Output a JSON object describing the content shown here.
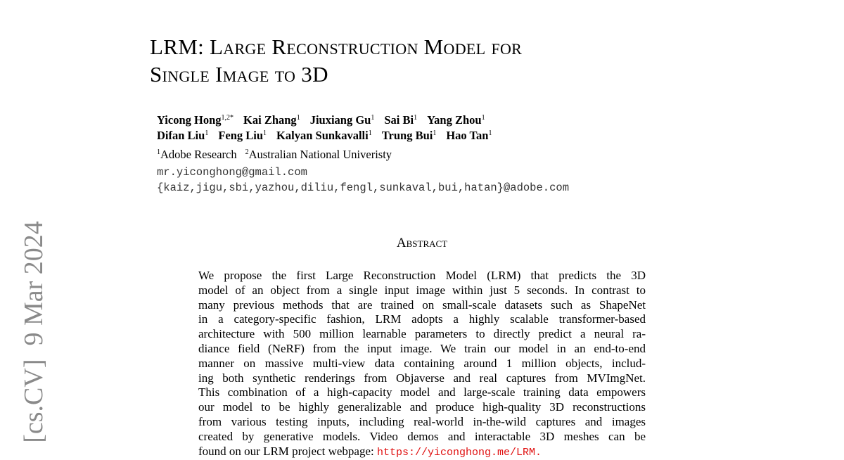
{
  "arxiv_stamp": "[cs.CV]  9 Mar 2024",
  "title": {
    "lines": [
      "LRM: Large Reconstruction Model for",
      "Single Image to 3D"
    ]
  },
  "authors": {
    "rows": [
      [
        {
          "name": "Yicong Hong",
          "sup": "1,2*"
        },
        {
          "name": "Kai Zhang",
          "sup": "1"
        },
        {
          "name": "Jiuxiang Gu",
          "sup": "1"
        },
        {
          "name": "Sai Bi",
          "sup": "1"
        },
        {
          "name": "Yang Zhou",
          "sup": "1"
        }
      ],
      [
        {
          "name": "Difan Liu",
          "sup": "1"
        },
        {
          "name": "Feng Liu",
          "sup": "1"
        },
        {
          "name": "Kalyan Sunkavalli",
          "sup": "1"
        },
        {
          "name": "Trung Bui",
          "sup": "1"
        },
        {
          "name": "Hao Tan",
          "sup": "1"
        }
      ]
    ]
  },
  "affiliations": [
    {
      "sup": "1",
      "name": "Adobe Research"
    },
    {
      "sup": "2",
      "name": "Australian National Univeristy"
    }
  ],
  "emails": [
    "mr.yiconghong@gmail.com",
    "{kaiz,jigu,sbi,yazhou,diliu,fengl,sunkaval,bui,hatan}@adobe.com"
  ],
  "abstract": {
    "heading": "Abstract",
    "lines": [
      "We propose the first Large Reconstruction Model (LRM) that predicts the 3D",
      "model of an object from a single input image within just 5 seconds. In contrast to",
      "many previous methods that are trained on small-scale datasets such as ShapeNet",
      "in a category-specific fashion, LRM adopts a highly scalable transformer-based",
      "architecture with 500 million learnable parameters to directly predict a neural ra-",
      "diance field (NeRF) from the input image. We train our model in an end-to-end",
      "manner on massive multi-view data containing around 1 million objects, includ-",
      "ing both synthetic renderings from Objaverse and real captures from MVImgNet.",
      "This combination of a high-capacity model and large-scale training data empowers",
      "our model to be highly generalizable and produce high-quality 3D reconstructions",
      "from various testing inputs, including real-world in-the-wild captures and images",
      "created by generative models. Video demos and interactable 3D meshes can be"
    ],
    "last_line": {
      "text": "found on our LRM project webpage: ",
      "link": "https://yiconghong.me/LRM."
    }
  }
}
